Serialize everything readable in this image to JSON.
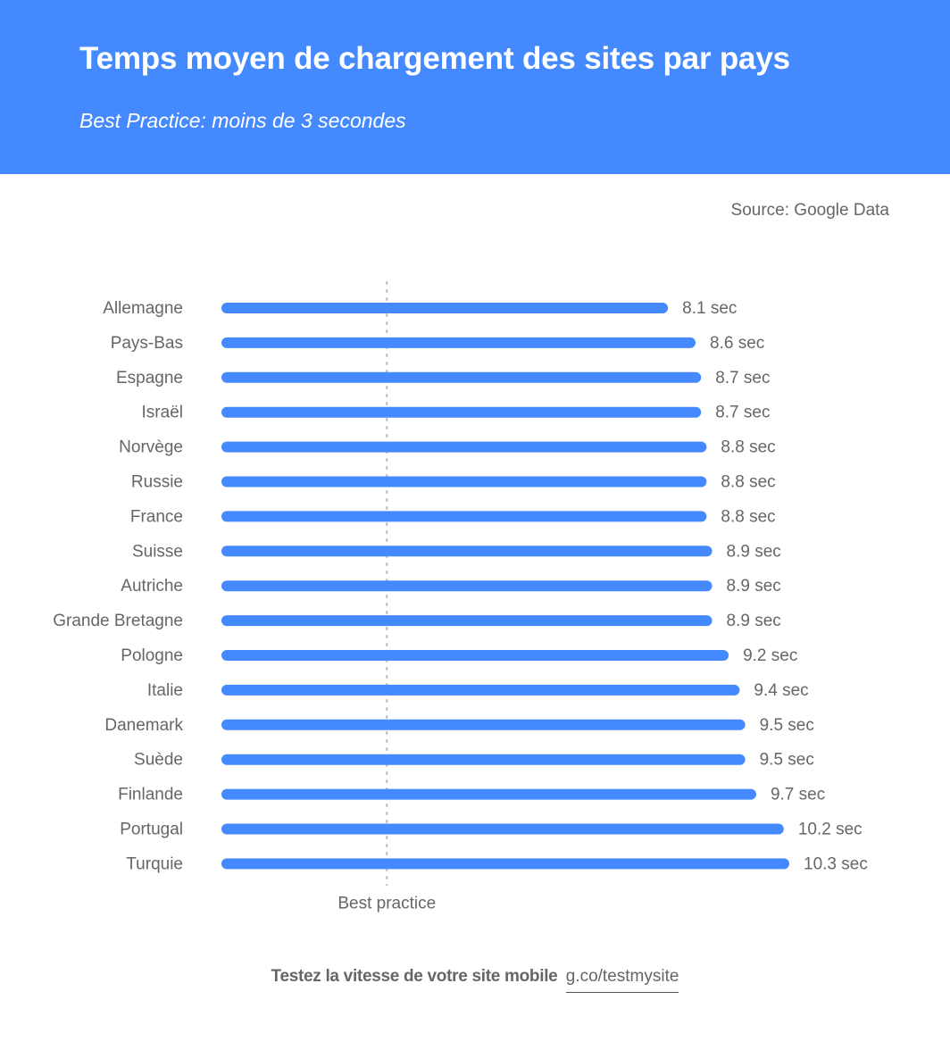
{
  "header": {
    "title": "Temps moyen de chargement des sites par pays",
    "subtitle": "Best Practice: moins de 3 secondes",
    "background_color": "#4589ff"
  },
  "source": "Source: Google Data",
  "chart_data": {
    "type": "bar",
    "orientation": "horizontal",
    "categories": [
      "Allemagne",
      "Pays-Bas",
      "Espagne",
      "Israël",
      "Norvège",
      "Russie",
      "France",
      "Suisse",
      "Autriche",
      "Grande Bretagne",
      "Pologne",
      "Italie",
      "Danemark",
      "Suède",
      "Finlande",
      "Portugal",
      "Turquie"
    ],
    "values": [
      8.1,
      8.6,
      8.7,
      8.7,
      8.8,
      8.8,
      8.8,
      8.9,
      8.9,
      8.9,
      9.2,
      9.4,
      9.5,
      9.5,
      9.7,
      10.2,
      10.3
    ],
    "value_labels": [
      "8.1 sec",
      "8.6 sec",
      "8.7 sec",
      "8.7 sec",
      "8.8 sec",
      "8.8 sec",
      "8.8 sec",
      "8.9 sec",
      "8.9 sec",
      "8.9 sec",
      "9.2 sec",
      "9.4 sec",
      "9.5 sec",
      "9.5 sec",
      "9.7 sec",
      "10.2 sec",
      "10.3 sec"
    ],
    "unit": "sec",
    "xlim": [
      0,
      10.3
    ],
    "reference_line": {
      "value": 3,
      "label": "Best practice",
      "style": "dotted"
    },
    "grid": false,
    "bar_color": "#4589ff",
    "label_color": "#666666"
  },
  "footer": {
    "cta": "Testez la vitesse de votre site mobile",
    "link": "g.co/testmysite"
  }
}
